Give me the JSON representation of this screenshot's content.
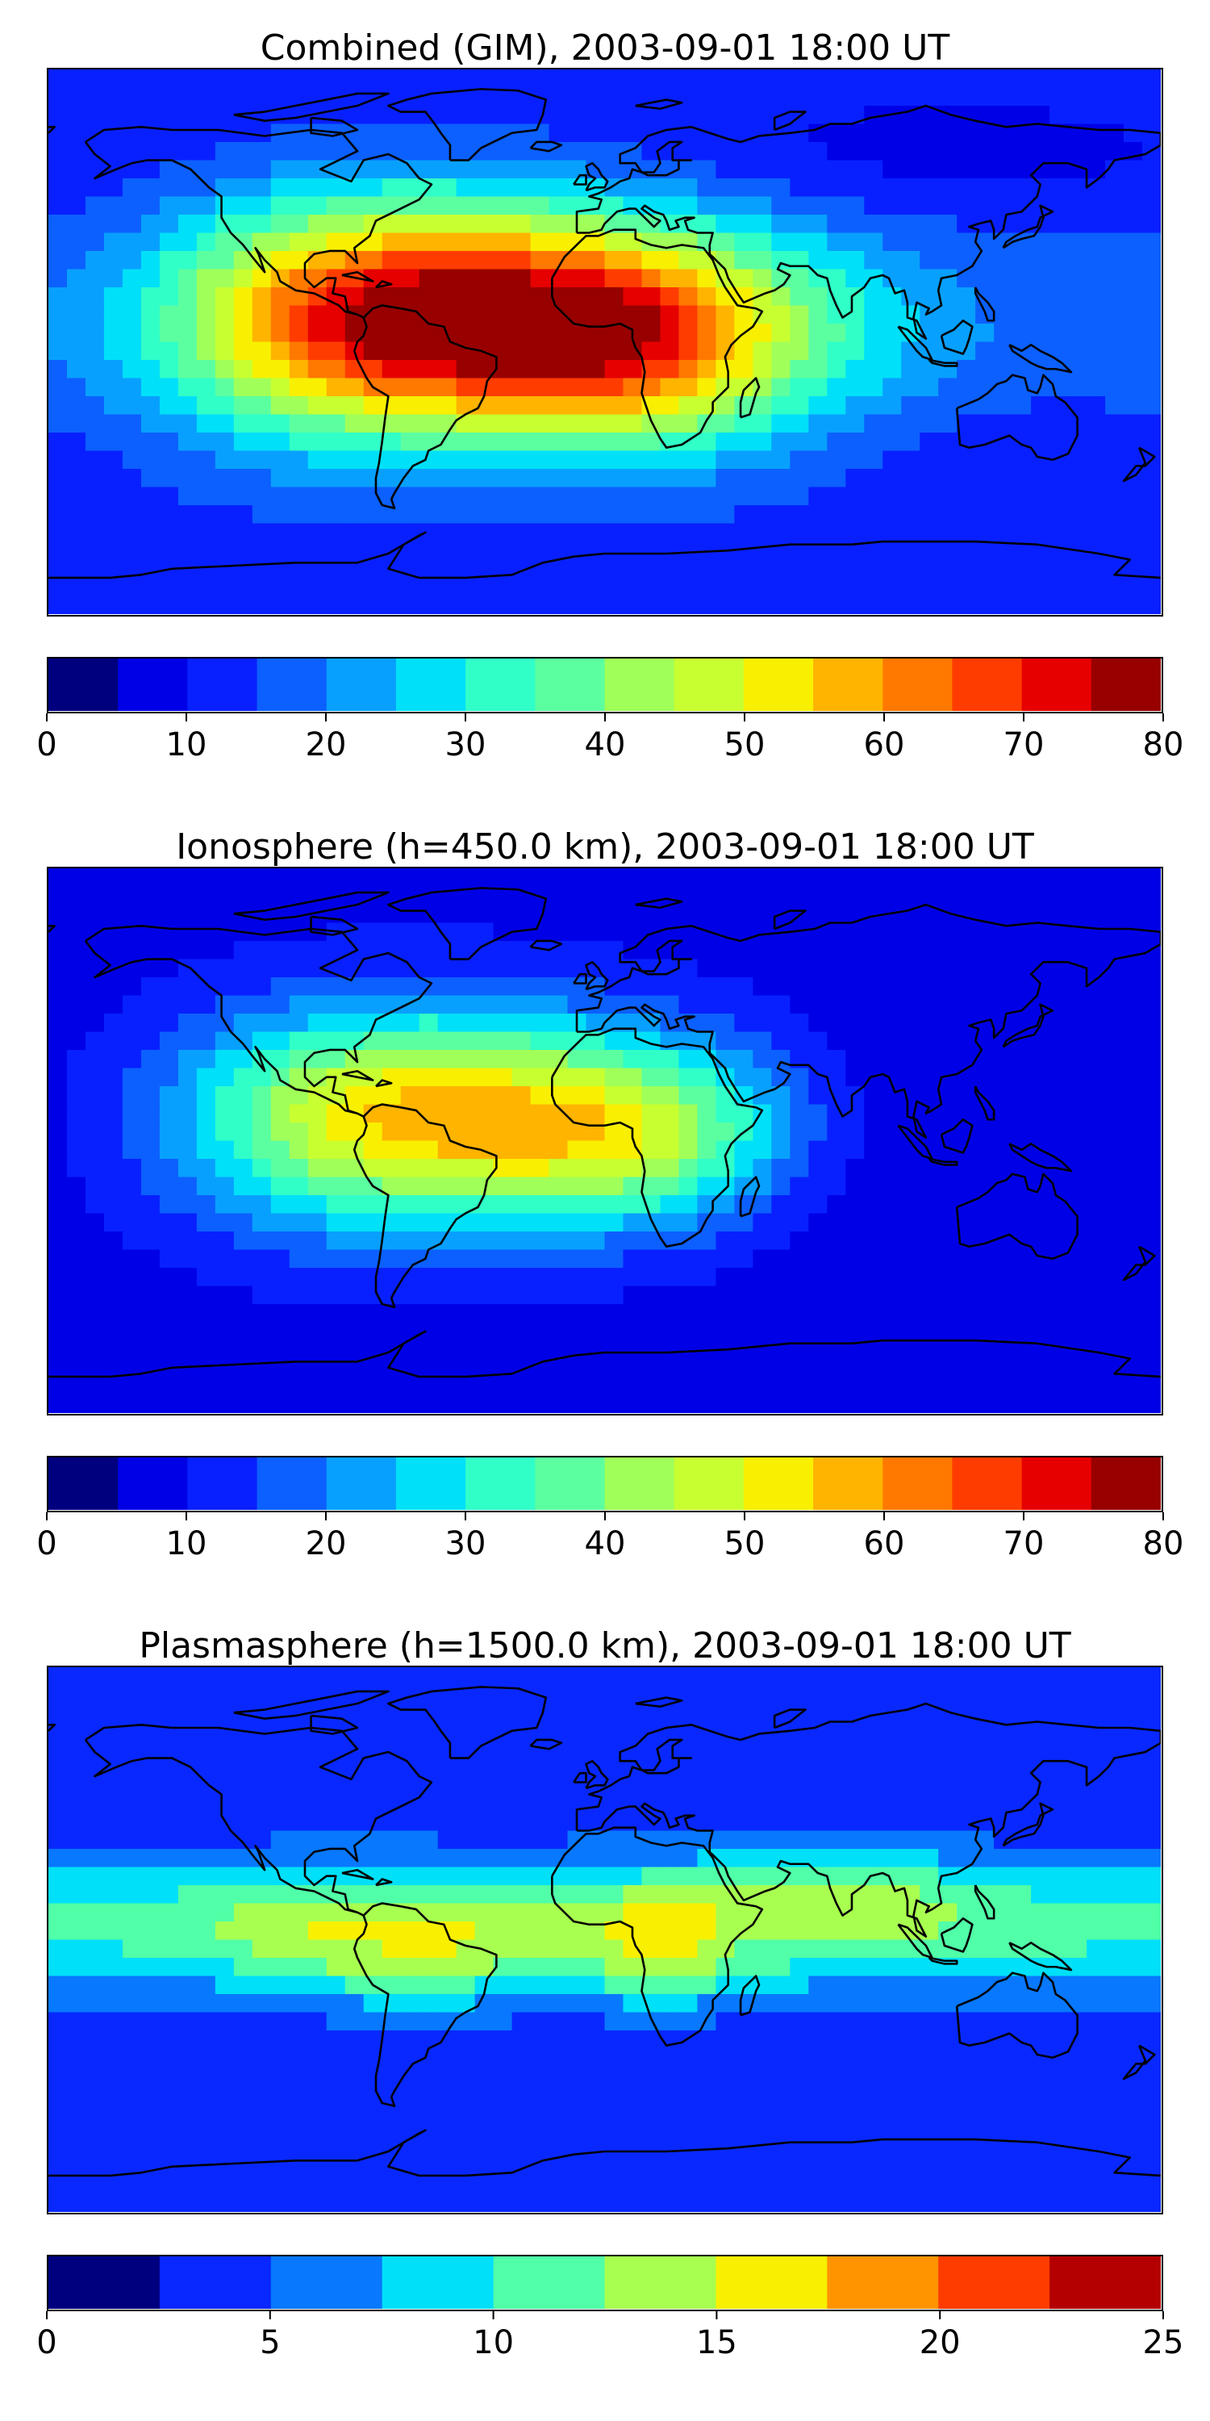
{
  "palettes": {
    "jet16": [
      "#00007f",
      "#0000e6",
      "#0820ff",
      "#0c60ff",
      "#08a0ff",
      "#00e0f8",
      "#30ffc8",
      "#5cffa0",
      "#a0ff58",
      "#c8ff30",
      "#f8f000",
      "#ffb400",
      "#ff7800",
      "#ff3c00",
      "#e60000",
      "#980000"
    ],
    "jet10": [
      "#00007f",
      "#0828ff",
      "#0878ff",
      "#00e0f8",
      "#50ffa8",
      "#a8ff50",
      "#f8f000",
      "#ff9400",
      "#ff3c00",
      "#b40000"
    ]
  },
  "chart_data": [
    {
      "type": "heatmap",
      "title": "Combined (GIM), 2003-09-01 18:00 UT",
      "colorbar": {
        "min": 0,
        "max": 80,
        "levels": 16,
        "ticks": [
          0,
          10,
          20,
          30,
          40,
          50,
          60,
          70,
          80
        ]
      },
      "field": {
        "background": 12,
        "blobs": [
          {
            "lon": -50,
            "lat": 8,
            "amp": 60,
            "sx": 55,
            "sy": 26
          },
          {
            "lon": 8,
            "lat": -2,
            "amp": 28,
            "sx": 35,
            "sy": 24
          },
          {
            "lon": -95,
            "lat": 5,
            "amp": 14,
            "sx": 40,
            "sy": 30
          },
          {
            "lon": 55,
            "lat": 5,
            "amp": 12,
            "sx": 40,
            "sy": 25
          },
          {
            "lon": 120,
            "lat": -5,
            "amp": 5,
            "sx": 60,
            "sy": 40
          },
          {
            "lon": 110,
            "lat": 60,
            "amp": -5,
            "sx": 70,
            "sy": 15
          },
          {
            "lon": 130,
            "lat": -35,
            "amp": -4,
            "sx": 50,
            "sy": 15
          }
        ]
      }
    },
    {
      "type": "heatmap",
      "title": "Ionosphere  (h=450.0 km), 2003-09-01 18:00 UT",
      "colorbar": {
        "min": 0,
        "max": 80,
        "levels": 16,
        "ticks": [
          0,
          10,
          20,
          30,
          40,
          50,
          60,
          70,
          80
        ]
      },
      "field": {
        "background": 8,
        "blobs": [
          {
            "lon": -45,
            "lat": 8,
            "amp": 42,
            "sx": 55,
            "sy": 24
          },
          {
            "lon": 5,
            "lat": -2,
            "amp": 15,
            "sx": 30,
            "sy": 20
          },
          {
            "lon": -90,
            "lat": 5,
            "amp": 12,
            "sx": 40,
            "sy": 28
          },
          {
            "lon": 35,
            "lat": 5,
            "amp": 8,
            "sx": 25,
            "sy": 20
          },
          {
            "lon": 120,
            "lat": 0,
            "amp": -3,
            "sx": 60,
            "sy": 40
          }
        ]
      }
    },
    {
      "type": "heatmap",
      "title": "Plasmasphere (h=1500.0 km), 2003-09-01 18:00 UT",
      "colorbar": {
        "min": 0,
        "max": 25,
        "levels": 10,
        "ticks": [
          0,
          5,
          10,
          15,
          20,
          25
        ]
      },
      "field": {
        "background": 2.5,
        "blobs": [
          {
            "lon": 0,
            "lat": 5,
            "amp": 9,
            "sx": 400,
            "sy": 17
          },
          {
            "lon": 20,
            "lat": -2,
            "amp": 5.5,
            "sx": 22,
            "sy": 15
          },
          {
            "lon": -55,
            "lat": -5,
            "amp": 4.5,
            "sx": 24,
            "sy": 15
          },
          {
            "lon": 80,
            "lat": 15,
            "amp": 4,
            "sx": 25,
            "sy": 12
          },
          {
            "lon": -100,
            "lat": 0,
            "amp": 3,
            "sx": 20,
            "sy": 15
          },
          {
            "lon": 45,
            "lat": 0,
            "amp": -2,
            "sx": 8,
            "sy": 8
          }
        ]
      }
    }
  ]
}
